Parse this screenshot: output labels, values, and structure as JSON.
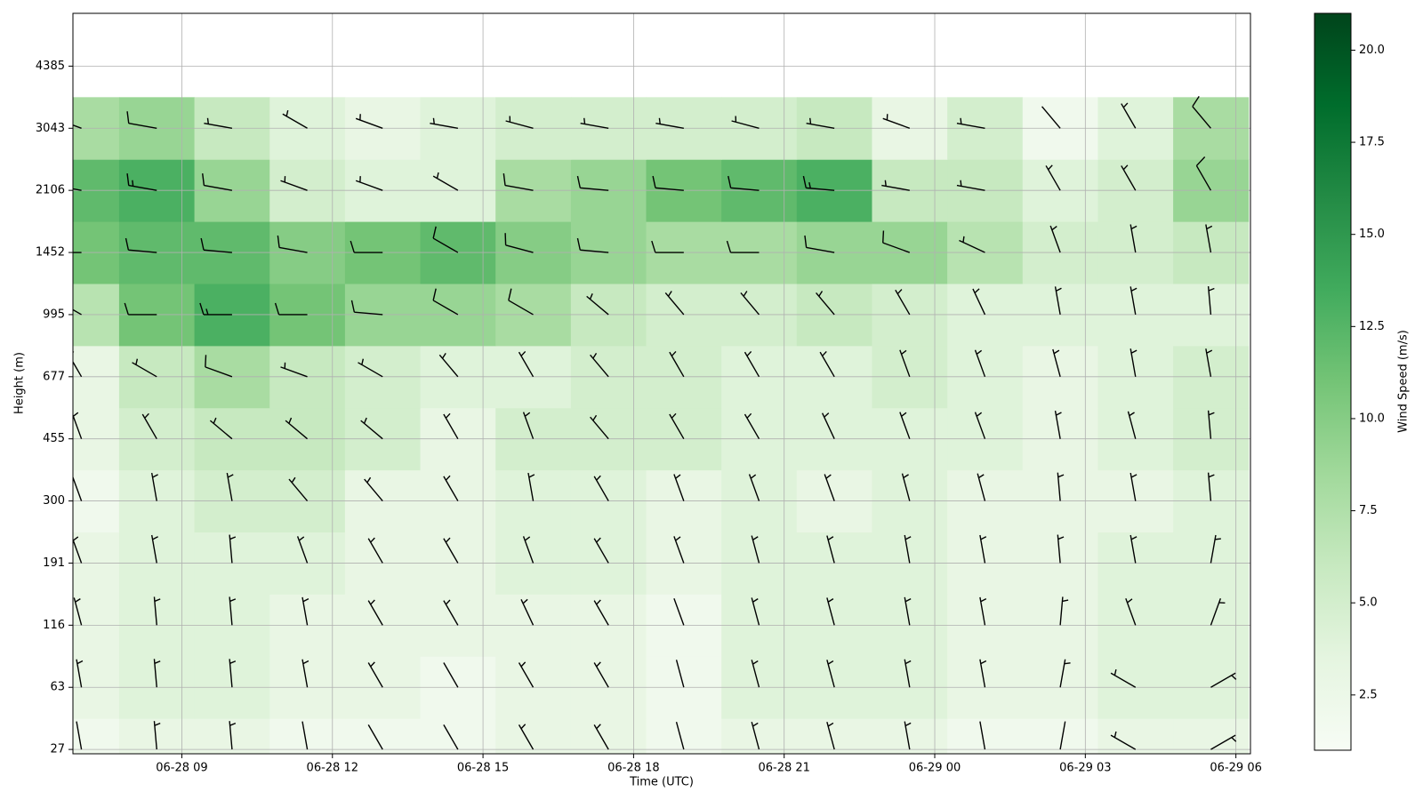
{
  "chart_data": {
    "type": "barbs",
    "x_label": "Time (UTC)",
    "y_label": "Height (m)",
    "colorbar_label": "Wind Speed (m/s)",
    "x": [
      7,
      8.5,
      10,
      11.5,
      13,
      14.5,
      16,
      17.5,
      19,
      20.5,
      22,
      23.5,
      25,
      26.5,
      28,
      29.5
    ],
    "xlim": [
      6.83,
      30.29
    ],
    "xticks": [
      {
        "value": 9,
        "label": "06-28 09"
      },
      {
        "value": 12,
        "label": "06-28 12"
      },
      {
        "value": 15,
        "label": "06-28 15"
      },
      {
        "value": 18,
        "label": "06-28 18"
      },
      {
        "value": 21,
        "label": "06-28 21"
      },
      {
        "value": 24,
        "label": "06-29 00"
      },
      {
        "value": 27,
        "label": "06-29 03"
      },
      {
        "value": 30,
        "label": "06-29 06"
      }
    ],
    "levels": [
      27,
      63,
      116,
      191,
      300,
      455,
      677,
      995,
      1452,
      2106,
      3043,
      4385
    ],
    "speed": [
      [
        2,
        3,
        3,
        2,
        2,
        2,
        3,
        3,
        2,
        3,
        3,
        3,
        2,
        2,
        3,
        3
      ],
      [
        3,
        4,
        4,
        3,
        3,
        2,
        3,
        3,
        2,
        4,
        4,
        4,
        3,
        3,
        4,
        4
      ],
      [
        3,
        4,
        4,
        3,
        3,
        3,
        3,
        3,
        2,
        4,
        4,
        4,
        3,
        3,
        4,
        4
      ],
      [
        3,
        4,
        4,
        4,
        3,
        3,
        4,
        4,
        3,
        4,
        4,
        4,
        3,
        3,
        4,
        4
      ],
      [
        2,
        4,
        5,
        5,
        3,
        3,
        4,
        4,
        3,
        4,
        3,
        4,
        3,
        3,
        3,
        4
      ],
      [
        3,
        5,
        6,
        6,
        5,
        3,
        5,
        5,
        5,
        4,
        4,
        4,
        4,
        3,
        4,
        5
      ],
      [
        3,
        6,
        8,
        6,
        5,
        4,
        4,
        5,
        5,
        4,
        4,
        5,
        4,
        3,
        4,
        5
      ],
      [
        7,
        11,
        13,
        11,
        9,
        9,
        8,
        6,
        5,
        5,
        6,
        5,
        4,
        4,
        4,
        4
      ],
      [
        11,
        12,
        12,
        10,
        11,
        12,
        10,
        9,
        8,
        8,
        9,
        9,
        7,
        5,
        5,
        6
      ],
      [
        12,
        13,
        9,
        5,
        4,
        4,
        8,
        9,
        11,
        12,
        13,
        6,
        6,
        4,
        5,
        9
      ],
      [
        8,
        9,
        6,
        4,
        3,
        4,
        5,
        5,
        5,
        5,
        6,
        3,
        5,
        2,
        4,
        8
      ],
      [
        null,
        null,
        null,
        null,
        null,
        null,
        null,
        null,
        null,
        null,
        null,
        null,
        null,
        null,
        null,
        null
      ]
    ],
    "direction": [
      [
        350,
        355,
        355,
        350,
        330,
        330,
        330,
        330,
        345,
        345,
        345,
        350,
        350,
        10,
        300,
        60
      ],
      [
        350,
        355,
        355,
        350,
        330,
        330,
        330,
        330,
        345,
        345,
        345,
        350,
        350,
        10,
        300,
        60
      ],
      [
        345,
        355,
        355,
        350,
        330,
        330,
        335,
        330,
        340,
        345,
        345,
        350,
        350,
        5,
        340,
        20
      ],
      [
        340,
        350,
        355,
        340,
        330,
        330,
        340,
        330,
        340,
        345,
        345,
        350,
        350,
        355,
        350,
        10
      ],
      [
        340,
        350,
        350,
        320,
        320,
        330,
        350,
        330,
        340,
        340,
        340,
        345,
        345,
        355,
        350,
        355
      ],
      [
        340,
        330,
        310,
        310,
        310,
        330,
        340,
        320,
        330,
        330,
        335,
        340,
        340,
        350,
        345,
        355
      ],
      [
        330,
        300,
        290,
        290,
        300,
        320,
        330,
        320,
        330,
        330,
        330,
        340,
        340,
        345,
        350,
        350
      ],
      [
        300,
        270,
        270,
        270,
        275,
        300,
        300,
        310,
        320,
        320,
        320,
        330,
        335,
        350,
        350,
        355
      ],
      [
        270,
        275,
        275,
        280,
        270,
        300,
        285,
        275,
        270,
        270,
        280,
        290,
        295,
        340,
        350,
        350
      ],
      [
        280,
        280,
        280,
        290,
        290,
        300,
        280,
        275,
        275,
        275,
        275,
        280,
        280,
        330,
        330,
        330
      ],
      [
        290,
        280,
        280,
        300,
        290,
        280,
        285,
        280,
        280,
        285,
        280,
        290,
        280,
        320,
        330,
        320
      ],
      [
        null,
        null,
        null,
        null,
        null,
        null,
        null,
        null,
        null,
        null,
        null,
        null,
        null,
        null,
        null,
        null
      ]
    ],
    "clim": [
      1,
      21
    ],
    "cticks": [
      2.5,
      {
        "value": 5,
        "label": "5.0"
      },
      7.5,
      {
        "value": 10,
        "label": "10.0"
      },
      12.5,
      {
        "value": 15,
        "label": "15.0"
      },
      17.5,
      {
        "value": 20,
        "label": "20.0"
      }
    ],
    "colormap": [
      "#f7fcf5",
      "#e5f5e0",
      "#c7e9c0",
      "#a1d99b",
      "#74c476",
      "#41ab5d",
      "#238b45",
      "#006d2c",
      "#00441b"
    ],
    "barb_color": "#000000",
    "grid": true
  }
}
